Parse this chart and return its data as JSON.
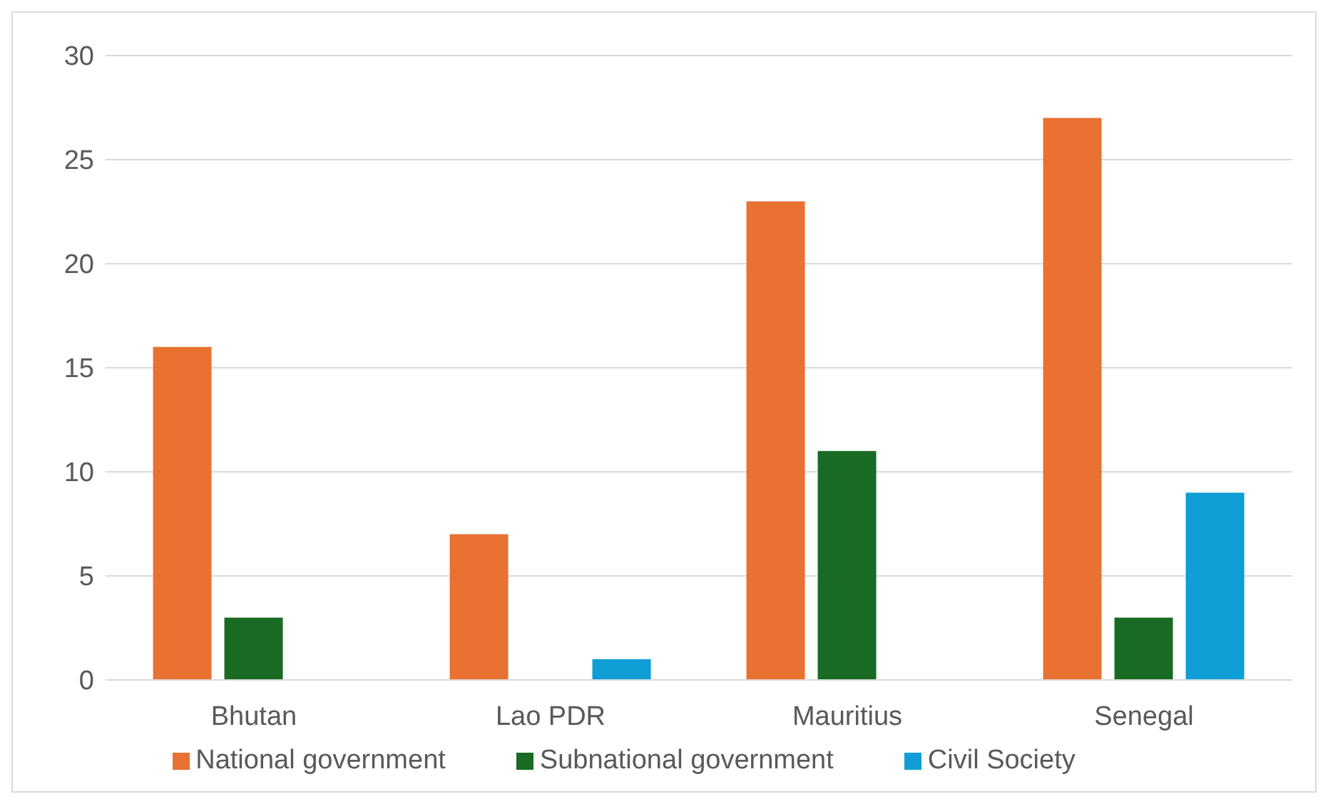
{
  "chart_data": {
    "type": "bar",
    "categories": [
      "Bhutan",
      "Lao PDR",
      "Mauritius",
      "Senegal"
    ],
    "series": [
      {
        "name": "National government",
        "color": "#e97132",
        "values": [
          16,
          7,
          23,
          27
        ]
      },
      {
        "name": "Subnational government",
        "color": "#196b24",
        "values": [
          3,
          0,
          11,
          3
        ]
      },
      {
        "name": "Civil Society",
        "color": "#0f9ed5",
        "values": [
          0,
          1,
          0,
          9
        ]
      }
    ],
    "ylim": [
      0,
      30
    ],
    "yticks": [
      0,
      5,
      10,
      15,
      20,
      25,
      30
    ],
    "grid": "y",
    "legend": "bottom"
  }
}
